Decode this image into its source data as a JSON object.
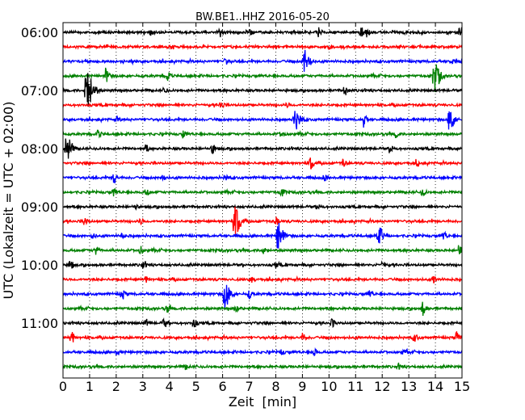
{
  "chart_data": {
    "type": "line",
    "title": "BW.BE1..HHZ 2016-05-20",
    "xlabel": "Zeit  [min]",
    "ylabel": "UTC (Lokalzeit = UTC + 02:00)",
    "xlim": [
      0,
      15
    ],
    "x_ticks": [
      "0",
      "1",
      "2",
      "3",
      "4",
      "5",
      "6",
      "7",
      "8",
      "9",
      "10",
      "11",
      "12",
      "13",
      "14",
      "15"
    ],
    "y_ticks": [
      "06:00",
      "07:00",
      "08:00",
      "09:00",
      "10:00",
      "11:00"
    ],
    "grid": "vertical dotted",
    "trace_colors": [
      "#000000",
      "#ff0000",
      "#0000ff",
      "#008000"
    ],
    "series": [
      {
        "start": "06:00",
        "events": [
          [
            3.3,
            0.25
          ],
          [
            5.9,
            0.3
          ],
          [
            7.0,
            0.2
          ],
          [
            9.6,
            0.28
          ],
          [
            11.2,
            0.35
          ],
          [
            11.4,
            0.3
          ],
          [
            14.9,
            0.35
          ]
        ]
      },
      {
        "start": "06:15",
        "events": [
          [
            4.1,
            0.1
          ],
          [
            10.0,
            0.1
          ]
        ]
      },
      {
        "start": "06:30",
        "events": [
          [
            6.1,
            0.2
          ],
          [
            9.05,
            0.9
          ],
          [
            14.6,
            0.2
          ]
        ]
      },
      {
        "start": "06:45",
        "events": [
          [
            1.6,
            0.6
          ],
          [
            3.9,
            0.35
          ],
          [
            13.95,
            1.2
          ]
        ]
      },
      {
        "start": "07:00",
        "events": [
          [
            0.85,
            2.0
          ],
          [
            1.2,
            0.3
          ],
          [
            3.8,
            0.2
          ],
          [
            10.6,
            0.4
          ]
        ]
      },
      {
        "start": "07:15",
        "events": [
          [
            5.9,
            0.3
          ],
          [
            8.4,
            0.15
          ]
        ]
      },
      {
        "start": "07:30",
        "events": [
          [
            2.0,
            0.15
          ],
          [
            8.7,
            0.8
          ],
          [
            11.3,
            0.65
          ],
          [
            14.5,
            0.9
          ]
        ]
      },
      {
        "start": "07:45",
        "events": [
          [
            1.3,
            0.25
          ],
          [
            4.5,
            0.25
          ],
          [
            8.2,
            0.25
          ],
          [
            12.5,
            0.25
          ]
        ]
      },
      {
        "start": "08:00",
        "events": [
          [
            0.1,
            1.1
          ],
          [
            3.1,
            0.35
          ],
          [
            5.6,
            0.35
          ],
          [
            12.3,
            0.3
          ]
        ]
      },
      {
        "start": "08:15",
        "events": [
          [
            9.3,
            0.5
          ],
          [
            10.5,
            0.3
          ],
          [
            13.3,
            0.2
          ]
        ]
      },
      {
        "start": "08:30",
        "events": [
          [
            1.9,
            0.45
          ],
          [
            3.7,
            0.25
          ],
          [
            6.1,
            0.2
          ],
          [
            9.8,
            0.2
          ]
        ]
      },
      {
        "start": "08:45",
        "events": [
          [
            1.9,
            0.3
          ],
          [
            3.1,
            0.3
          ],
          [
            8.2,
            0.3
          ],
          [
            13.5,
            0.3
          ]
        ]
      },
      {
        "start": "09:00",
        "events": [
          [
            2.7,
            0.2
          ],
          [
            9.6,
            0.15
          ]
        ]
      },
      {
        "start": "09:15",
        "events": [
          [
            0.8,
            0.35
          ],
          [
            2.9,
            0.2
          ],
          [
            6.45,
            1.2
          ],
          [
            8.0,
            0.3
          ]
        ]
      },
      {
        "start": "09:30",
        "events": [
          [
            1.1,
            0.2
          ],
          [
            2.2,
            0.2
          ],
          [
            8.05,
            1.1
          ],
          [
            11.8,
            0.8
          ],
          [
            14.3,
            0.3
          ]
        ]
      },
      {
        "start": "09:45",
        "events": [
          [
            1.2,
            0.35
          ],
          [
            2.9,
            0.3
          ],
          [
            7.5,
            0.3
          ],
          [
            14.9,
            0.6
          ]
        ]
      },
      {
        "start": "10:00",
        "events": [
          [
            0.25,
            0.35
          ],
          [
            3.0,
            0.25
          ],
          [
            8.0,
            0.25
          ],
          [
            12.0,
            0.25
          ]
        ]
      },
      {
        "start": "10:15",
        "events": [
          [
            3.1,
            0.2
          ],
          [
            7.1,
            0.2
          ],
          [
            13.9,
            0.35
          ]
        ]
      },
      {
        "start": "10:30",
        "events": [
          [
            2.2,
            0.4
          ],
          [
            6.05,
            1.1
          ],
          [
            7.0,
            0.3
          ],
          [
            11.5,
            0.25
          ]
        ]
      },
      {
        "start": "10:45",
        "events": [
          [
            3.9,
            0.3
          ],
          [
            6.5,
            0.2
          ],
          [
            13.5,
            0.55
          ]
        ]
      },
      {
        "start": "11:00",
        "events": [
          [
            3.1,
            0.25
          ],
          [
            3.8,
            0.35
          ],
          [
            4.9,
            0.3
          ],
          [
            10.1,
            0.3
          ]
        ]
      },
      {
        "start": "11:15",
        "events": [
          [
            0.3,
            0.5
          ],
          [
            9.0,
            0.3
          ],
          [
            13.2,
            0.3
          ],
          [
            14.8,
            0.45
          ]
        ]
      },
      {
        "start": "11:30",
        "events": [
          [
            2.0,
            0.2
          ],
          [
            8.2,
            0.2
          ],
          [
            9.4,
            0.35
          ],
          [
            12.8,
            0.2
          ]
        ]
      },
      {
        "start": "11:45",
        "events": [
          [
            4.6,
            0.15
          ],
          [
            12.6,
            0.15
          ]
        ]
      }
    ]
  }
}
